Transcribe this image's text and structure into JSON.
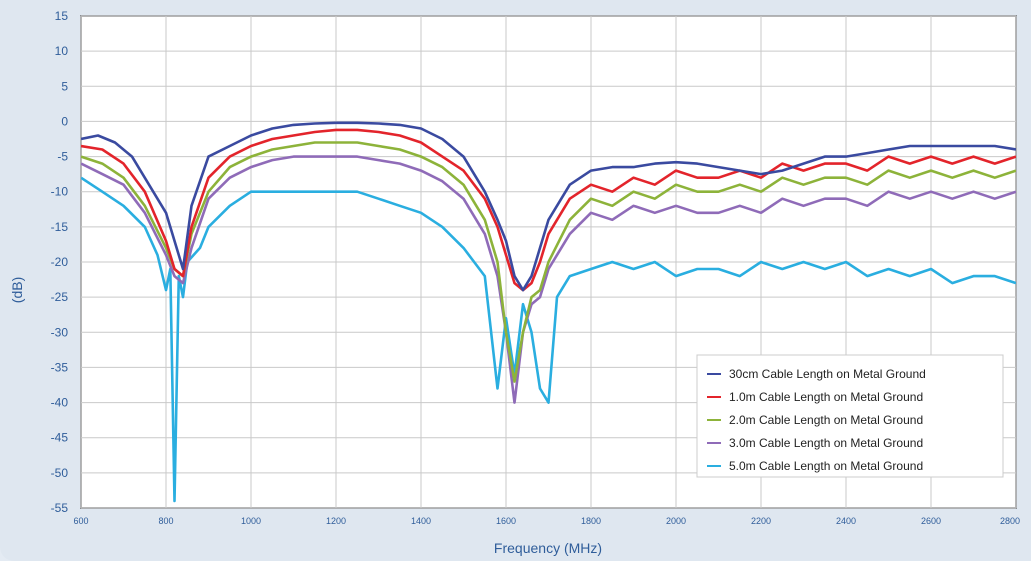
{
  "chart_data": {
    "type": "line",
    "title": "",
    "xlabel": "Frequency (MHz)",
    "ylabel": "(dB)",
    "xlim": [
      600,
      2800
    ],
    "ylim": [
      -55,
      15
    ],
    "x_ticks": [
      600,
      800,
      1000,
      1200,
      1400,
      1600,
      1800,
      2000,
      2200,
      2400,
      2600,
      2800
    ],
    "y_ticks": [
      15,
      10,
      5,
      0,
      -5,
      -10,
      -15,
      -20,
      -25,
      -30,
      -35,
      -40,
      -45,
      -50,
      -55
    ],
    "grid": true,
    "legend_position": "bottom-right",
    "series": [
      {
        "name": "30cm Cable Length on Metal Ground",
        "color": "#3a4aa0",
        "x": [
          600,
          640,
          680,
          720,
          760,
          800,
          820,
          840,
          860,
          900,
          950,
          1000,
          1050,
          1100,
          1150,
          1200,
          1250,
          1300,
          1350,
          1400,
          1450,
          1500,
          1550,
          1580,
          1600,
          1620,
          1640,
          1660,
          1680,
          1700,
          1750,
          1800,
          1850,
          1900,
          1950,
          2000,
          2050,
          2100,
          2150,
          2200,
          2250,
          2300,
          2350,
          2400,
          2450,
          2500,
          2550,
          2600,
          2650,
          2700,
          2750,
          2800
        ],
        "y": [
          -2.5,
          -2,
          -3,
          -5,
          -9,
          -13,
          -17,
          -21,
          -12,
          -5,
          -3.5,
          -2,
          -1,
          -0.5,
          -0.3,
          -0.2,
          -0.2,
          -0.3,
          -0.5,
          -1,
          -2.5,
          -5,
          -10,
          -14,
          -17,
          -22,
          -24,
          -22,
          -18,
          -14,
          -9,
          -7,
          -6.5,
          -6.5,
          -6,
          -5.8,
          -6,
          -6.5,
          -7,
          -7.5,
          -7,
          -6,
          -5,
          -5,
          -4.5,
          -4,
          -3.5,
          -3.5,
          -3.5,
          -3.5,
          -3.5,
          -4
        ]
      },
      {
        "name": "1.0m Cable Length on Metal Ground",
        "color": "#e3242b",
        "x": [
          600,
          650,
          700,
          750,
          800,
          820,
          840,
          860,
          900,
          950,
          1000,
          1050,
          1100,
          1150,
          1200,
          1250,
          1300,
          1350,
          1400,
          1450,
          1500,
          1550,
          1580,
          1600,
          1620,
          1640,
          1660,
          1680,
          1700,
          1750,
          1800,
          1850,
          1900,
          1950,
          2000,
          2050,
          2100,
          2150,
          2200,
          2250,
          2300,
          2350,
          2400,
          2450,
          2500,
          2550,
          2600,
          2650,
          2700,
          2750,
          2800
        ],
        "y": [
          -3.5,
          -4,
          -6,
          -10,
          -17,
          -21,
          -22,
          -15,
          -8,
          -5,
          -3.5,
          -2.5,
          -2,
          -1.5,
          -1.2,
          -1.2,
          -1.5,
          -2,
          -3,
          -5,
          -7,
          -11,
          -15,
          -19,
          -23,
          -24,
          -23,
          -20,
          -16,
          -11,
          -9,
          -10,
          -8,
          -9,
          -7,
          -8,
          -8,
          -7,
          -8,
          -6,
          -7,
          -6,
          -6,
          -7,
          -5,
          -6,
          -5,
          -6,
          -5,
          -6,
          -5
        ]
      },
      {
        "name": "2.0m Cable Length on Metal Ground",
        "color": "#8db33a",
        "x": [
          600,
          650,
          700,
          750,
          800,
          820,
          840,
          860,
          900,
          950,
          1000,
          1050,
          1100,
          1150,
          1200,
          1250,
          1300,
          1350,
          1400,
          1450,
          1500,
          1550,
          1580,
          1600,
          1620,
          1640,
          1660,
          1680,
          1700,
          1750,
          1800,
          1850,
          1900,
          1950,
          2000,
          2050,
          2100,
          2150,
          2200,
          2250,
          2300,
          2350,
          2400,
          2450,
          2500,
          2550,
          2600,
          2650,
          2700,
          2750,
          2800
        ],
        "y": [
          -5,
          -6,
          -8,
          -12,
          -18,
          -21,
          -22,
          -16,
          -10,
          -6.5,
          -5,
          -4,
          -3.5,
          -3,
          -3,
          -3,
          -3.5,
          -4,
          -5,
          -6.5,
          -9,
          -14,
          -20,
          -30,
          -37,
          -30,
          -25,
          -24,
          -20,
          -14,
          -11,
          -12,
          -10,
          -11,
          -9,
          -10,
          -10,
          -9,
          -10,
          -8,
          -9,
          -8,
          -8,
          -9,
          -7,
          -8,
          -7,
          -8,
          -7,
          -8,
          -7
        ]
      },
      {
        "name": "3.0m Cable Length on Metal Ground",
        "color": "#8f6bb8",
        "x": [
          600,
          650,
          700,
          750,
          800,
          820,
          840,
          860,
          900,
          950,
          1000,
          1050,
          1100,
          1150,
          1200,
          1250,
          1300,
          1350,
          1400,
          1450,
          1500,
          1550,
          1580,
          1600,
          1620,
          1640,
          1660,
          1680,
          1700,
          1750,
          1800,
          1850,
          1900,
          1950,
          2000,
          2050,
          2100,
          2150,
          2200,
          2250,
          2300,
          2350,
          2400,
          2450,
          2500,
          2550,
          2600,
          2650,
          2700,
          2750,
          2800
        ],
        "y": [
          -6,
          -7.5,
          -9,
          -13,
          -19,
          -22,
          -23,
          -18,
          -11,
          -8,
          -6.5,
          -5.5,
          -5,
          -5,
          -5,
          -5,
          -5.5,
          -6,
          -7,
          -8.5,
          -11,
          -16,
          -22,
          -30,
          -40,
          -30,
          -26,
          -25,
          -21,
          -16,
          -13,
          -14,
          -12,
          -13,
          -12,
          -13,
          -13,
          -12,
          -13,
          -11,
          -12,
          -11,
          -11,
          -12,
          -10,
          -11,
          -10,
          -11,
          -10,
          -11,
          -10
        ]
      },
      {
        "name": "5.0m Cable Length on Metal Ground",
        "color": "#2aaee0",
        "x": [
          600,
          650,
          700,
          750,
          780,
          800,
          810,
          820,
          830,
          840,
          850,
          880,
          900,
          950,
          1000,
          1050,
          1100,
          1150,
          1200,
          1250,
          1300,
          1350,
          1400,
          1450,
          1500,
          1550,
          1580,
          1600,
          1620,
          1640,
          1660,
          1680,
          1700,
          1720,
          1750,
          1800,
          1850,
          1900,
          1950,
          2000,
          2050,
          2100,
          2150,
          2200,
          2250,
          2300,
          2350,
          2400,
          2450,
          2500,
          2550,
          2600,
          2650,
          2700,
          2750,
          2800
        ],
        "y": [
          -8,
          -10,
          -12,
          -15,
          -19,
          -24,
          -21,
          -54,
          -22,
          -25,
          -20,
          -18,
          -15,
          -12,
          -10,
          -10,
          -10,
          -10,
          -10,
          -10,
          -11,
          -12,
          -13,
          -15,
          -18,
          -22,
          -38,
          -28,
          -36,
          -26,
          -30,
          -38,
          -40,
          -25,
          -22,
          -21,
          -20,
          -21,
          -20,
          -22,
          -21,
          -21,
          -22,
          -20,
          -21,
          -20,
          -21,
          -20,
          -22,
          -21,
          -22,
          -21,
          -23,
          -22,
          -22,
          -23
        ]
      }
    ]
  }
}
